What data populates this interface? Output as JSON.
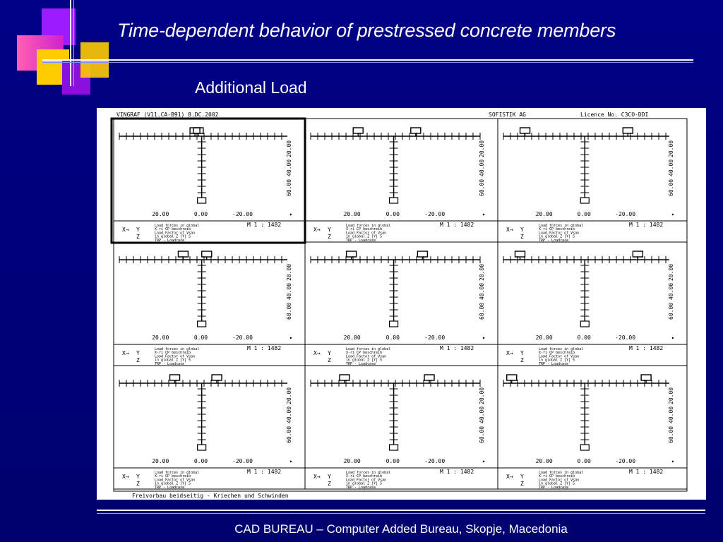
{
  "slide": {
    "title": "Time-dependent behavior of prestressed concrete members",
    "subtitle": "Additional Load",
    "footer": "CAD BUREAU – Computer Added Bureau, Skopje, Macedonia"
  },
  "colors": {
    "background": "#000080",
    "text": "#ffffff",
    "deco_magenta": "#e020e0",
    "deco_yellow": "#ffcc00",
    "deco_purple": "#8020ff",
    "deco_pink": "#ff4090"
  },
  "printout": {
    "header_left": "VINGRAF (V11.CA-B91) 8.DC.2002",
    "header_mid": "SOFISTIK AG",
    "header_right": "Licence No. C3CO-DDI",
    "footer_text": "Freivorbau beidseitig - Kriechen und Schwinden",
    "panel_x_ticks": [
      "20.00",
      "0.00",
      "-20.00"
    ],
    "panel_y_ticks": [
      "20.00",
      "40.00",
      "60.00"
    ],
    "axis_symbol_x": "X",
    "axis_symbol_z": "Z",
    "axis_symbol_y": "Y",
    "scale_label": "M 1 : 1482",
    "legend_lines": [
      "Load forces in global",
      "X-ri CP beschreib",
      "Load Factor of Vsan",
      "in global Z [Y] 5",
      "TRP - Loadcase"
    ]
  }
}
